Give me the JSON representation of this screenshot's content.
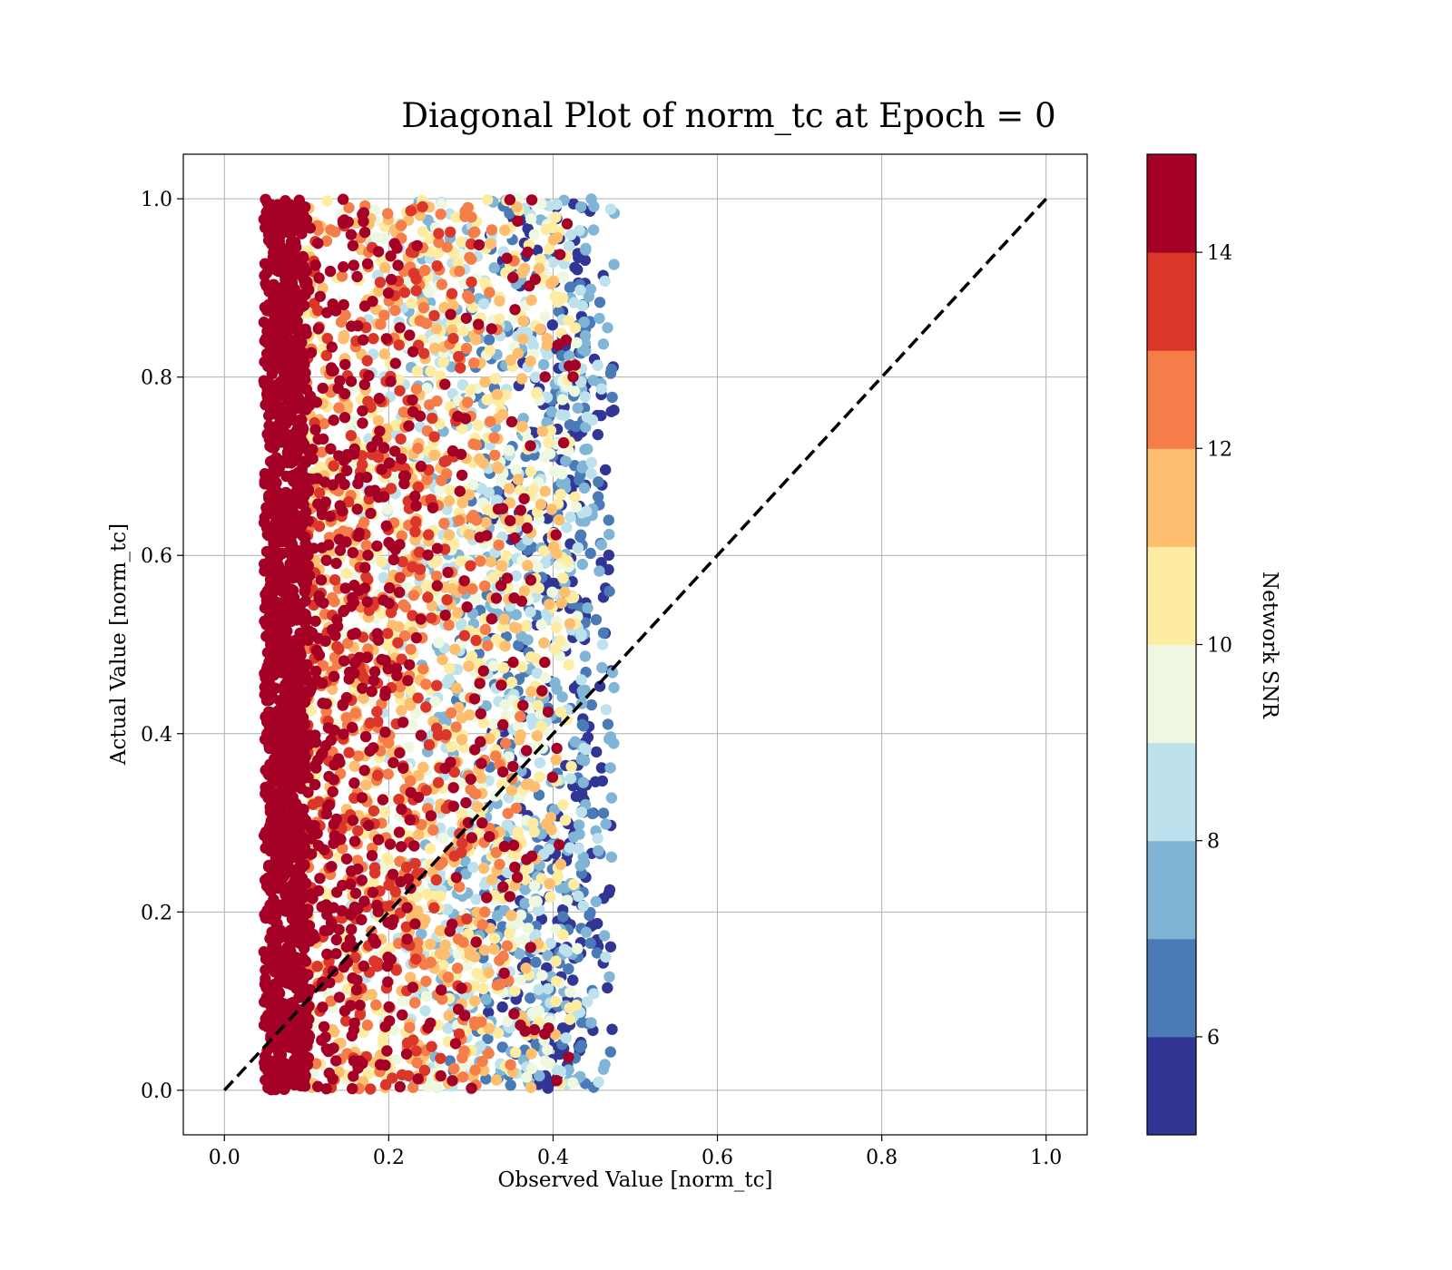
{
  "chart_data": {
    "type": "scatter",
    "title": "Diagonal Plot of norm_tc at Epoch = 0",
    "xlabel": "Observed Value [norm_tc]",
    "ylabel": "Actual Value [norm_tc]",
    "xlim": [
      -0.05,
      1.05
    ],
    "ylim": [
      -0.05,
      1.05
    ],
    "xticks": [
      "0.0",
      "0.2",
      "0.4",
      "0.6",
      "0.8",
      "1.0"
    ],
    "yticks": [
      "0.0",
      "0.2",
      "0.4",
      "0.6",
      "0.8",
      "1.0"
    ],
    "grid": true,
    "reference_line": {
      "x": [
        0.0,
        1.0
      ],
      "y": [
        0.0,
        1.0
      ],
      "style": "dashed",
      "color": "#000000"
    },
    "scatter_region": {
      "x_range": [
        0.045,
        0.475
      ],
      "y_range": [
        0.0,
        1.0
      ],
      "description_trend": "color decreases from high SNR (left) to low SNR (right)"
    },
    "colorbar": {
      "label": "Network SNR",
      "range": [
        5,
        15
      ],
      "ticks": [
        "6",
        "8",
        "10",
        "12",
        "14"
      ],
      "colors": [
        "#313695",
        "#4575b4",
        "#74add1",
        "#abd9e9",
        "#e0f3f8",
        "#ffffbf",
        "#fee090",
        "#fdae61",
        "#f46d43",
        "#d73027",
        "#a50026"
      ],
      "levels": [
        {
          "from": 5,
          "to": 6,
          "color": "#313695"
        },
        {
          "from": 6,
          "to": 7,
          "color": "#4a7bb7"
        },
        {
          "from": 7,
          "to": 8,
          "color": "#80b5d6"
        },
        {
          "from": 8,
          "to": 9,
          "color": "#bde2ed"
        },
        {
          "from": 9,
          "to": 10,
          "color": "#eef7e0"
        },
        {
          "from": 10,
          "to": 11,
          "color": "#fdeca2"
        },
        {
          "from": 11,
          "to": 12,
          "color": "#fdbe6f"
        },
        {
          "from": 12,
          "to": 13,
          "color": "#f57d4a"
        },
        {
          "from": 13,
          "to": 14,
          "color": "#da372a"
        },
        {
          "from": 14,
          "to": 15,
          "color": "#a50026"
        }
      ]
    }
  }
}
